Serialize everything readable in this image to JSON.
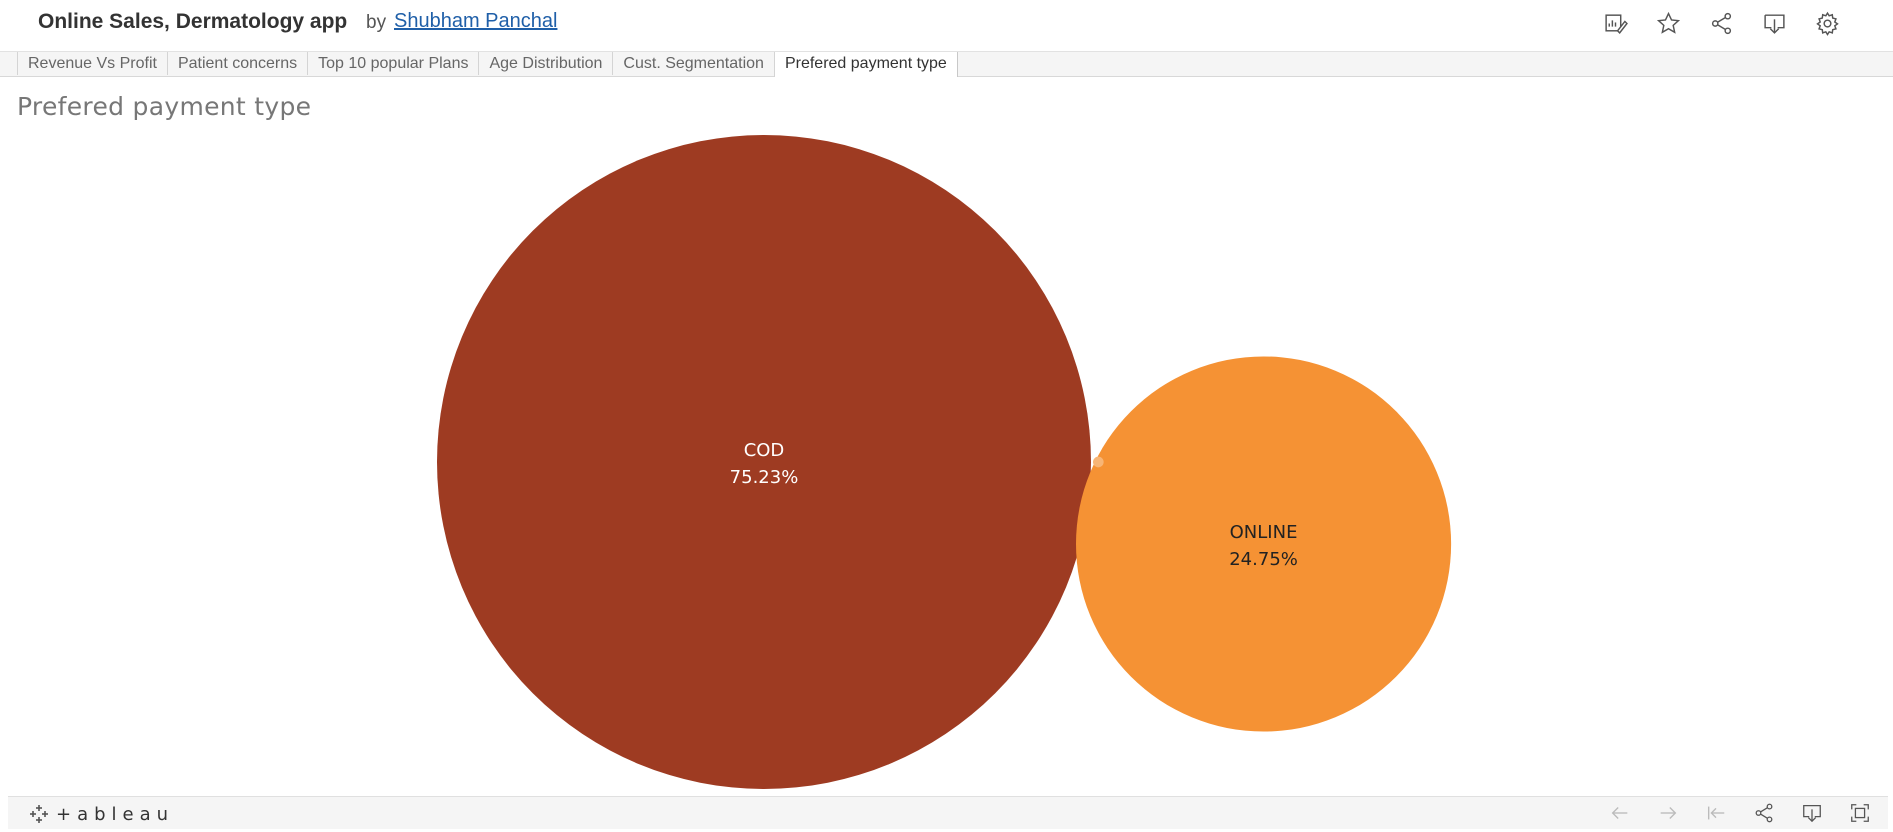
{
  "header": {
    "title": "Online Sales, Dermatology app",
    "by_label": "by",
    "author": "Shubham Panchal",
    "icons": [
      "edit-icon",
      "favorite-star-icon",
      "share-icon",
      "download-icon",
      "settings-gear-icon"
    ]
  },
  "tabs": [
    {
      "label": "Revenue Vs Profit",
      "active": false
    },
    {
      "label": "Patient concerns",
      "active": false
    },
    {
      "label": "Top 10 popular Plans",
      "active": false
    },
    {
      "label": "Age Distribution",
      "active": false
    },
    {
      "label": "Cust. Segmentation",
      "active": false
    },
    {
      "label": "Prefered payment type",
      "active": true
    }
  ],
  "sheet": {
    "title": "Prefered payment type"
  },
  "chart_data": {
    "type": "packed-bubble",
    "title": "Prefered payment type",
    "series": [
      {
        "name": "COD",
        "value": 75.23,
        "label": "75.23%",
        "color": "#9e3b22"
      },
      {
        "name": "ONLINE",
        "value": 24.75,
        "label": "24.75%",
        "color": "#f59234"
      },
      {
        "name": "",
        "value": 0.02,
        "label": "",
        "color": "#f7b576"
      }
    ]
  },
  "footer": {
    "logo_text": "+ableau",
    "icons": [
      "undo-arrow-icon",
      "redo-arrow-icon",
      "revert-icon",
      "share-icon",
      "download-icon",
      "fullscreen-icon"
    ]
  }
}
